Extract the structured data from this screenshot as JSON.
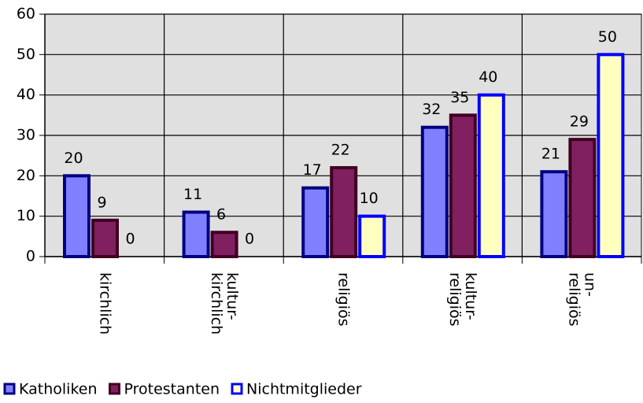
{
  "chart_data": {
    "type": "bar",
    "categories": [
      [
        "kirchlich"
      ],
      [
        "kultur-",
        "kirchlich"
      ],
      [
        "religiös"
      ],
      [
        "kultur-",
        "religiös"
      ],
      [
        "un-",
        "religiös"
      ]
    ],
    "series": [
      {
        "name": "Katholiken",
        "color": "#8080ff",
        "stroke": "#000080",
        "values": [
          20,
          11,
          17,
          32,
          21
        ]
      },
      {
        "name": "Protestanten",
        "color": "#802060",
        "stroke": "#400020",
        "values": [
          9,
          6,
          22,
          35,
          29
        ]
      },
      {
        "name": "Nichtmitglieder",
        "color": "#ffffc0",
        "stroke": "#0000ff",
        "values": [
          0,
          0,
          10,
          40,
          50
        ]
      }
    ],
    "ylim": [
      0,
      60
    ],
    "yticks": [
      0,
      10,
      20,
      30,
      40,
      50,
      60
    ],
    "grid": true,
    "legend": "bottom-left"
  }
}
